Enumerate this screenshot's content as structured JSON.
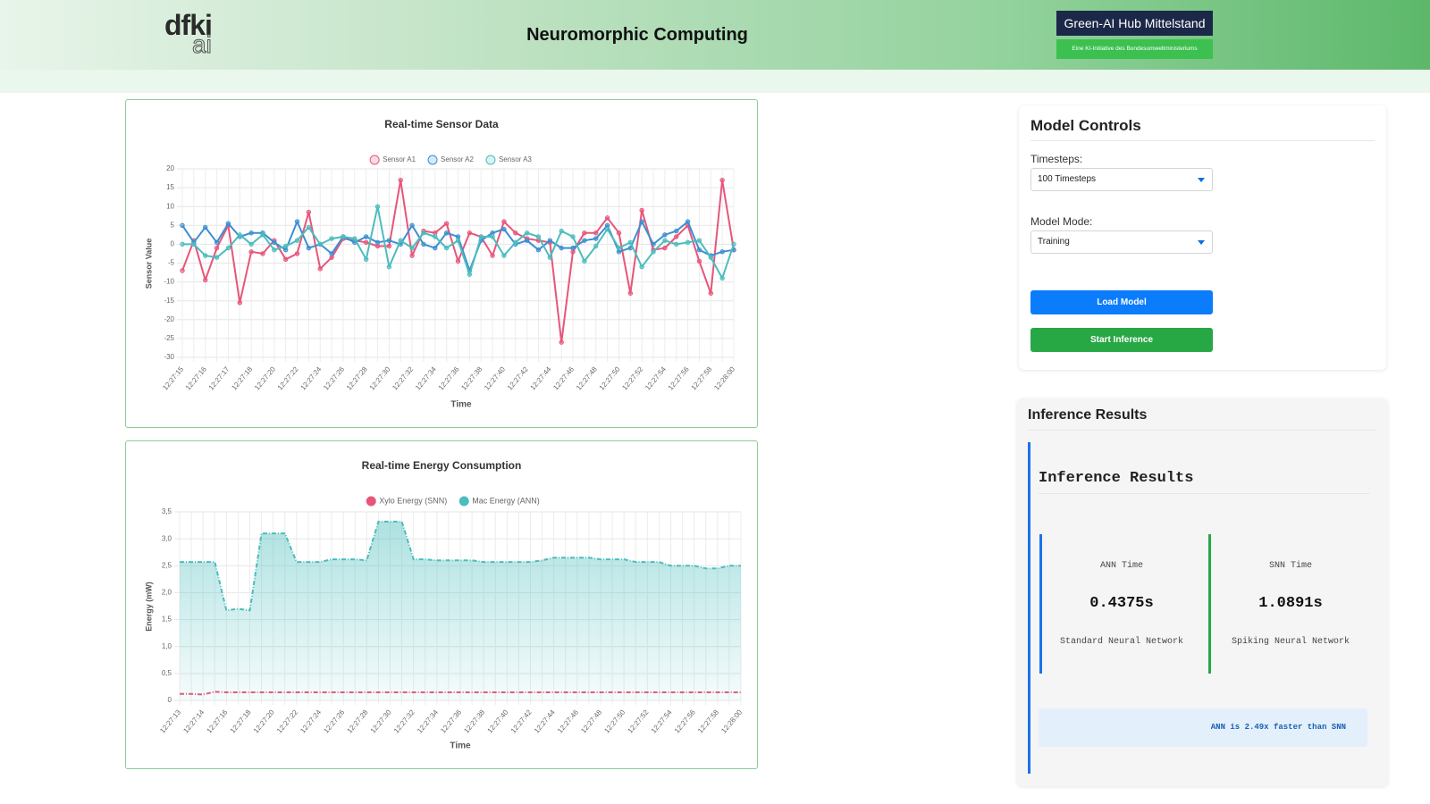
{
  "header": {
    "logo_main": "dfki",
    "logo_sub": "ai",
    "title": "Neuromorphic Computing",
    "badge_title": "Green-AI Hub Mittelstand",
    "badge_subtitle": "Eine KI-Initiative des Bundesumweltministeriums"
  },
  "controls": {
    "title": "Model Controls",
    "timesteps_label": "Timesteps:",
    "timesteps_value": "100 Timesteps",
    "mode_label": "Model Mode:",
    "mode_value": "Training",
    "load_button": "Load Model",
    "start_button": "Start Inference"
  },
  "results": {
    "outer_title": "Inference Results",
    "inner_title": "Inference Results",
    "cards": [
      {
        "label": "ANN Time",
        "value": "0.4375s",
        "description": "Standard Neural Network"
      },
      {
        "label": "SNN Time",
        "value": "1.0891s",
        "description": "Spiking Neural Network"
      }
    ],
    "summary": "ANN is 2.49x faster than SNN"
  },
  "chart_data": [
    {
      "type": "line",
      "title": "Real-time Sensor Data",
      "x_label": "Time",
      "y_label": "Sensor Value",
      "grid": true,
      "markers": true,
      "legend": "top",
      "legend_style": "hollow",
      "categories": [
        "12:27:15",
        null,
        "12:27:16",
        null,
        "12:27:17",
        null,
        "12:27:18",
        null,
        "12:27:20",
        null,
        "12:27:22",
        null,
        "12:27:24",
        null,
        "12:27:26",
        null,
        "12:27:28",
        null,
        "12:27:30",
        null,
        "12:27:32",
        null,
        "12:27:34",
        null,
        "12:27:36",
        null,
        "12:27:38",
        null,
        "12:27:40",
        null,
        "12:27:42",
        null,
        "12:27:44",
        null,
        "12:27:46",
        null,
        "12:27:48",
        null,
        "12:27:50",
        null,
        "12:27:52",
        null,
        "12:27:54",
        null,
        "12:27:56",
        null,
        "12:27:58",
        null,
        "12:28:00"
      ],
      "ylim": [
        -30,
        20
      ],
      "yticks": [
        -30,
        -25,
        -20,
        -15,
        -10,
        -5,
        0,
        5,
        10,
        15,
        20
      ],
      "series": [
        {
          "name": "Sensor A1",
          "color": "#e8557a",
          "values": [
            -7,
            1,
            -9.5,
            -1,
            5,
            -15.5,
            -2,
            -2.5,
            1,
            -4,
            -2.5,
            8.5,
            -6.5,
            -3.5,
            1.5,
            1,
            0.5,
            -0.5,
            -0.5,
            17,
            -3,
            3.5,
            3,
            5.5,
            -4.5,
            3,
            2,
            -3,
            6,
            3,
            1.5,
            1,
            0.5,
            -26,
            -2,
            3,
            3,
            7,
            3,
            -13,
            9,
            -1.5,
            -1,
            2,
            5,
            -4.5,
            -13,
            17,
            -1.5
          ]
        },
        {
          "name": "Sensor A2",
          "color": "#3b8fd1",
          "values": [
            5,
            0.5,
            4.5,
            0.5,
            5.5,
            2,
            3,
            3,
            0.5,
            -1.5,
            6,
            -1,
            0,
            -2.5,
            2,
            0.5,
            2,
            0.5,
            1,
            0,
            5,
            0,
            -1,
            3,
            2,
            -7,
            1,
            3,
            4,
            0,
            1,
            -1.5,
            1,
            -1,
            -1,
            1,
            1.5,
            5,
            -2,
            -1,
            6,
            0,
            2.5,
            3.5,
            6,
            -1.5,
            -3,
            -2,
            -1.5
          ]
        },
        {
          "name": "Sensor A3",
          "color": "#4bbdbd",
          "values": [
            0,
            0,
            -3,
            -3.5,
            -1,
            2.5,
            0,
            2.5,
            -1.5,
            -0.5,
            1,
            4.5,
            0,
            1.5,
            2,
            1.5,
            -4,
            10,
            -6,
            1,
            -1,
            3,
            2,
            -1,
            1,
            -8,
            2,
            2,
            -3,
            0.5,
            3,
            2,
            -3.5,
            3.5,
            2,
            -4.5,
            -0.5,
            4,
            -1,
            0.5,
            -6,
            -2,
            1,
            0,
            0.5,
            1,
            -3.5,
            -9,
            0
          ]
        }
      ]
    },
    {
      "type": "line",
      "title": "Real-time Energy Consumption",
      "x_label": "Time",
      "y_label": "Energy (mW)",
      "grid": true,
      "markers": false,
      "dashed": true,
      "legend": "top",
      "legend_style": "filled",
      "categories": [
        "12:27:13",
        null,
        "12:27:14",
        null,
        "12:27:16",
        null,
        "12:27:18",
        null,
        "12:27:20",
        null,
        "12:27:22",
        null,
        "12:27:24",
        null,
        "12:27:26",
        null,
        "12:27:28",
        null,
        "12:27:30",
        null,
        "12:27:32",
        null,
        "12:27:34",
        null,
        "12:27:36",
        null,
        "12:27:38",
        null,
        "12:27:40",
        null,
        "12:27:42",
        null,
        "12:27:44",
        null,
        "12:27:46",
        null,
        "12:27:48",
        null,
        "12:27:50",
        null,
        "12:27:52",
        null,
        "12:27:54",
        null,
        "12:27:56",
        null,
        "12:27:58",
        null,
        "12:28:00"
      ],
      "ylim": [
        0,
        3.5
      ],
      "yticks": [
        0,
        {
          "value": 0.5,
          "label": "0,5"
        },
        {
          "value": 1,
          "label": "1,0"
        },
        {
          "value": 1.5,
          "label": "1,5"
        },
        {
          "value": 2,
          "label": "2,0"
        },
        {
          "value": 2.5,
          "label": "2,5"
        },
        {
          "value": 3,
          "label": "3,0"
        },
        {
          "value": 3.5,
          "label": "3,5"
        }
      ],
      "series": [
        {
          "name": "Xylo Energy (SNN)",
          "color": "#e8557a",
          "fill": false,
          "values": [
            0.12,
            0.12,
            0.11,
            0.16,
            0.15,
            0.15,
            0.15,
            0.15,
            0.15,
            0.15,
            0.15,
            0.15,
            0.15,
            0.15,
            0.15,
            0.15,
            0.15,
            0.15,
            0.15,
            0.15,
            0.15,
            0.15,
            0.15,
            0.15,
            0.15,
            0.15,
            0.15,
            0.15,
            0.15,
            0.15,
            0.15,
            0.15,
            0.15,
            0.15,
            0.15,
            0.15,
            0.15,
            0.15,
            0.15,
            0.15,
            0.15,
            0.15,
            0.15,
            0.15,
            0.15,
            0.15,
            0.15,
            0.15,
            0.15
          ]
        },
        {
          "name": "Mac Energy (ANN)",
          "color": "#4bbdbd",
          "fill": true,
          "values": [
            2.57,
            2.57,
            2.57,
            2.57,
            1.67,
            1.7,
            1.67,
            3.1,
            3.1,
            3.1,
            2.57,
            2.57,
            2.57,
            2.62,
            2.62,
            2.62,
            2.6,
            3.32,
            3.32,
            3.32,
            2.62,
            2.62,
            2.6,
            2.6,
            2.6,
            2.6,
            2.57,
            2.57,
            2.57,
            2.57,
            2.57,
            2.6,
            2.65,
            2.65,
            2.65,
            2.65,
            2.62,
            2.62,
            2.62,
            2.57,
            2.57,
            2.57,
            2.5,
            2.5,
            2.5,
            2.45,
            2.45,
            2.5,
            2.5
          ]
        }
      ]
    }
  ]
}
